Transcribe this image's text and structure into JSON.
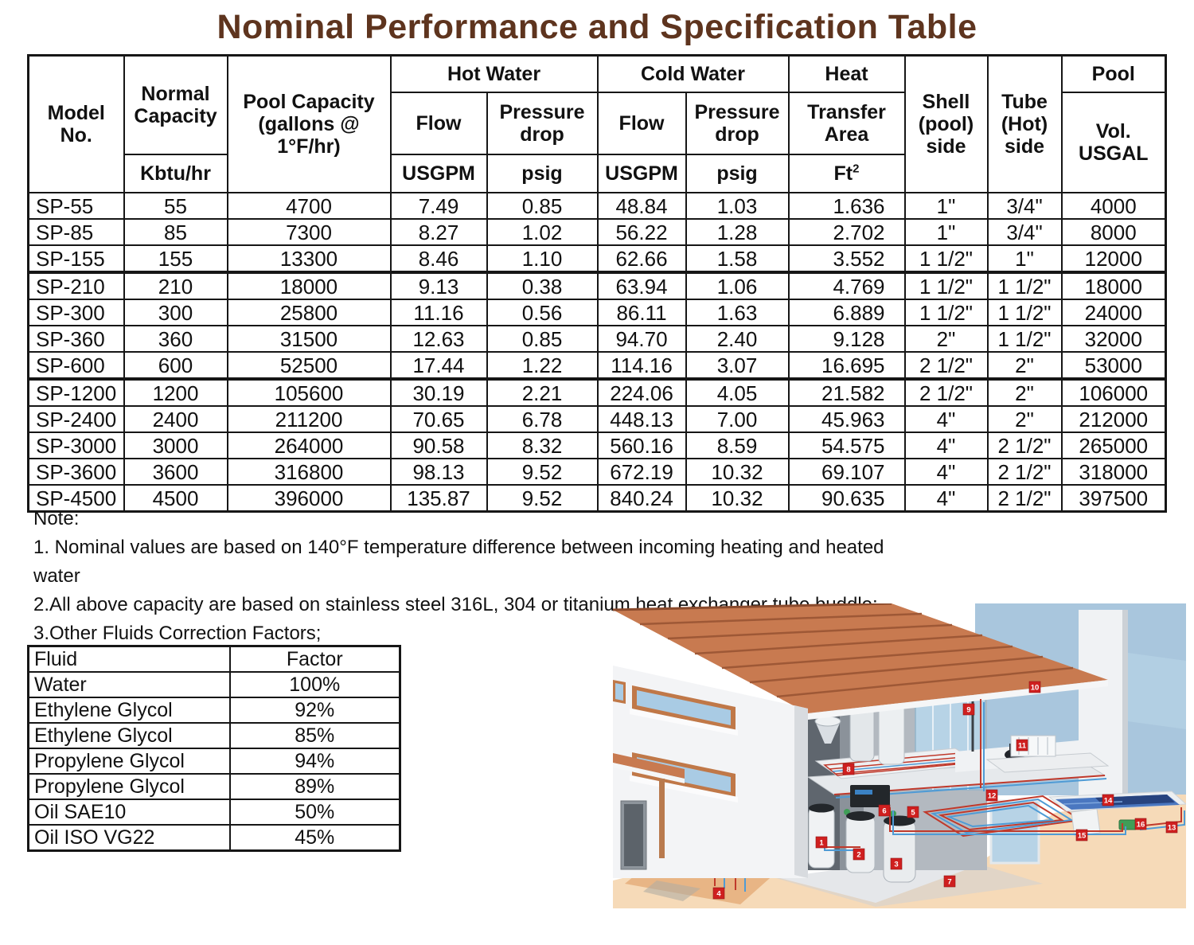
{
  "title": "Nominal Performance and Specification Table",
  "colors": {
    "title_brown": "#5e341e",
    "table_border": "#161616"
  },
  "spec_table": {
    "header": {
      "model": "Model\nNo.",
      "normal_capacity": "Normal\nCapacity",
      "kbtu": "Kbtu/hr",
      "pool_capacity": "Pool Capacity\n(gallons @\n1°F/hr)",
      "hot_water": "Hot Water",
      "cold_water": "Cold Water",
      "flow": "Flow",
      "pressure_drop": "Pressure\ndrop",
      "usgpm": "USGPM",
      "psig": "psig",
      "heat": "Heat",
      "transfer_area": "Transfer\nArea",
      "ft": "Ft",
      "ft_sup": "2",
      "shell_side": "Shell\n(pool)\nside",
      "tube_side": "Tube\n(Hot)\nside",
      "pool": "Pool",
      "pool_vol": "Vol.\nUSGAL"
    },
    "rows": [
      [
        "SP-55",
        "55",
        "4700",
        "7.49",
        "0.85",
        "48.84",
        "1.03",
        "1.636",
        "1\"",
        "3/4\"",
        "4000"
      ],
      [
        "SP-85",
        "85",
        "7300",
        "8.27",
        "1.02",
        "56.22",
        "1.28",
        "2.702",
        "1\"",
        "3/4\"",
        "8000"
      ],
      [
        "SP-155",
        "155",
        "13300",
        "8.46",
        "1.10",
        "62.66",
        "1.58",
        "3.552",
        "1 1/2\"",
        "1\"",
        "12000"
      ],
      [
        "SP-210",
        "210",
        "18000",
        "9.13",
        "0.38",
        "63.94",
        "1.06",
        "4.769",
        "1 1/2\"",
        "1 1/2\"",
        "18000"
      ],
      [
        "SP-300",
        "300",
        "25800",
        "11.16",
        "0.56",
        "86.11",
        "1.63",
        "6.889",
        "1 1/2\"",
        "1 1/2\"",
        "24000"
      ],
      [
        "SP-360",
        "360",
        "31500",
        "12.63",
        "0.85",
        "94.70",
        "2.40",
        "9.128",
        "2\"",
        "1 1/2\"",
        "32000"
      ],
      [
        "SP-600",
        "600",
        "52500",
        "17.44",
        "1.22",
        "114.16",
        "3.07",
        "16.695",
        "2 1/2\"",
        "2\"",
        "53000"
      ],
      [
        "SP-1200",
        "1200",
        "105600",
        "30.19",
        "2.21",
        "224.06",
        "4.05",
        "21.582",
        "2 1/2\"",
        "2\"",
        "106000"
      ],
      [
        "SP-2400",
        "2400",
        "211200",
        "70.65",
        "6.78",
        "448.13",
        "7.00",
        "45.963",
        "4\"",
        "2\"",
        "212000"
      ],
      [
        "SP-3000",
        "3000",
        "264000",
        "90.58",
        "8.32",
        "560.16",
        "8.59",
        "54.575",
        "4\"",
        "2 1/2\"",
        "265000"
      ],
      [
        "SP-3600",
        "3600",
        "316800",
        "98.13",
        "9.52",
        "672.19",
        "10.32",
        "69.107",
        "4\"",
        "2 1/2\"",
        "318000"
      ],
      [
        "SP-4500",
        "4500",
        "396000",
        "135.87",
        "9.52",
        "840.24",
        "10.32",
        "90.635",
        "4\"",
        "2 1/2\"",
        "397500"
      ]
    ]
  },
  "notes": {
    "label": "Note:",
    "items": [
      "1. Nominal values are based on 140°F temperature difference between incoming heating and heated water",
      "2.All above capacity are based on stainless steel 316L, 304 or titanium heat exchanger tube buddle;",
      "3.Other Fluids Correction Factors;"
    ]
  },
  "fluid_table": {
    "headers": [
      "Fluid",
      "Factor"
    ],
    "rows": [
      [
        "Water",
        "100%"
      ],
      [
        "Ethylene Glycol",
        "92%"
      ],
      [
        "Ethylene Glycol",
        "85%"
      ],
      [
        "Propylene Glycol",
        "94%"
      ],
      [
        "Propylene Glycol",
        "89%"
      ],
      [
        "Oil SAE10",
        "50%"
      ],
      [
        "Oil ISO VG22",
        "45%"
      ]
    ]
  },
  "illustration": {
    "description": "house-heating-system-cutaway",
    "badge_numbers": [
      "1",
      "2",
      "3",
      "4",
      "5",
      "6",
      "7",
      "8",
      "9",
      "10",
      "11",
      "12",
      "13",
      "14",
      "15",
      "16"
    ],
    "colors": {
      "roof": "#c87a50",
      "sky": "#a9c6dd",
      "ground": "#f6dab8",
      "pool_water": "#4a77c0",
      "pool_cover": "#27437e",
      "pipe_hot": "#c0392b",
      "pipe_cold": "#4f9bd5",
      "badge": "#cf1f1f"
    }
  }
}
